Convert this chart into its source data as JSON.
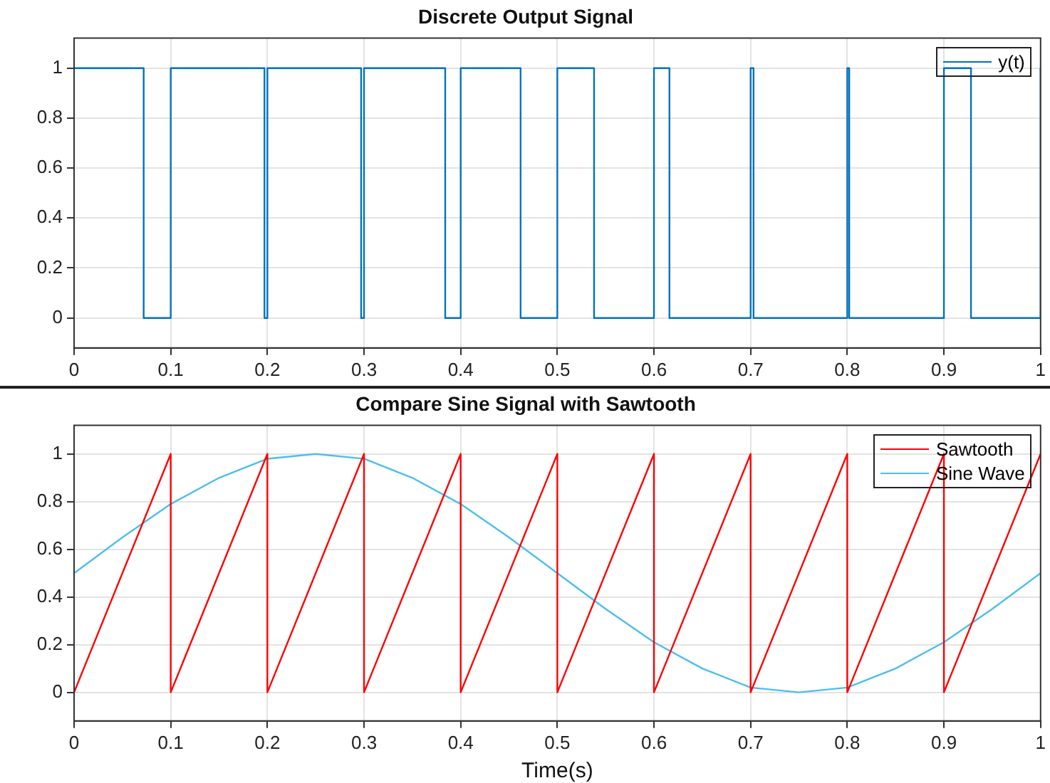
{
  "chart_data": [
    {
      "type": "step",
      "title": "Discrete Output Signal",
      "legend": "top right",
      "grid": true,
      "marker": "none",
      "line_style": "solid",
      "xlim": [
        0,
        1
      ],
      "xticks": [
        0,
        0.1,
        0.2,
        0.3,
        0.4,
        0.5,
        0.6,
        0.7,
        0.8,
        0.9,
        1
      ],
      "ylim": [
        -0.12,
        1.12
      ],
      "yticks": [
        0,
        0.2,
        0.4,
        0.6,
        0.8,
        1
      ],
      "series": [
        {
          "name": "y(t)",
          "color": "#0072bd",
          "x": [
            0,
            0.072,
            0.1,
            0.197,
            0.2,
            0.297,
            0.3,
            0.384,
            0.4,
            0.462,
            0.5,
            0.538,
            0.6,
            0.616,
            0.7,
            0.703,
            0.8,
            0.802,
            0.9,
            0.928,
            1
          ],
          "values": [
            1,
            0,
            1,
            0,
            1,
            0,
            1,
            0,
            1,
            0,
            1,
            0,
            1,
            0,
            1,
            0,
            1,
            0,
            1,
            0,
            1
          ]
        }
      ]
    },
    {
      "type": "line",
      "title": "Compare Sine Signal with Sawtooth",
      "xlabel": "Time(s)",
      "legend": "top right",
      "grid": true,
      "marker": "none",
      "line_style": "solid",
      "xlim": [
        0,
        1
      ],
      "xticks": [
        0,
        0.1,
        0.2,
        0.3,
        0.4,
        0.5,
        0.6,
        0.7,
        0.8,
        0.9,
        1
      ],
      "ylim": [
        -0.12,
        1.12
      ],
      "yticks": [
        0,
        0.2,
        0.4,
        0.6,
        0.8,
        1
      ],
      "series": [
        {
          "name": "Sawtooth",
          "color": "#ff0000",
          "x": [
            0,
            0.1,
            0.1,
            0.2,
            0.2,
            0.3,
            0.3,
            0.4,
            0.4,
            0.5,
            0.5,
            0.6,
            0.6,
            0.7,
            0.7,
            0.8,
            0.8,
            0.9,
            0.9,
            1
          ],
          "values": [
            0,
            1,
            0,
            1,
            0,
            1,
            0,
            1,
            0,
            1,
            0,
            1,
            0,
            1,
            0,
            1,
            0,
            1,
            0,
            1
          ]
        },
        {
          "name": "Sine Wave",
          "color": "#4dbeee",
          "x": [
            0,
            0.05,
            0.1,
            0.15,
            0.2,
            0.25,
            0.3,
            0.35,
            0.4,
            0.45,
            0.5,
            0.55,
            0.6,
            0.65,
            0.7,
            0.75,
            0.8,
            0.85,
            0.9,
            0.95,
            1
          ],
          "values": [
            0.5,
            0.65,
            0.79,
            0.9,
            0.98,
            1,
            0.98,
            0.9,
            0.79,
            0.65,
            0.5,
            0.35,
            0.21,
            0.1,
            0.02,
            0,
            0.02,
            0.1,
            0.21,
            0.35,
            0.5
          ]
        }
      ]
    }
  ]
}
